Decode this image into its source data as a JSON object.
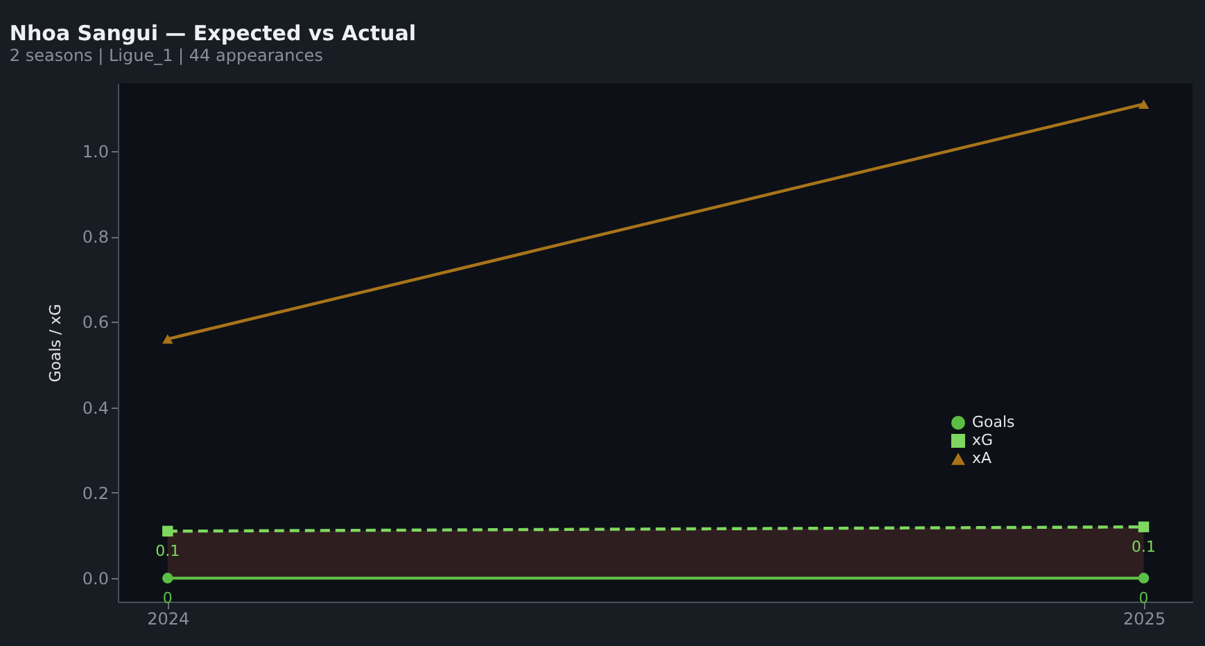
{
  "chart_data": {
    "type": "line",
    "title": "Nhoa Sangui — Expected vs Actual",
    "subtitle": "2 seasons | Ligue_1 | 44 appearances",
    "ylabel": "Goals / xG",
    "x": [
      2024,
      2025
    ],
    "xlim": [
      2023.949,
      2025.05
    ],
    "xticks": [
      2024,
      2025
    ],
    "ylim": [
      -0.055,
      1.159
    ],
    "yticks": [
      {
        "value": 0,
        "label": "0.0"
      },
      0.2,
      0.4,
      0.6,
      0.8,
      {
        "value": 1,
        "label": "1.0"
      }
    ],
    "series": [
      {
        "name": "Goals",
        "color": "#5cbf45",
        "values": [
          0,
          0
        ],
        "marker": "circle",
        "line_style": "solid",
        "value_labels": [
          "0",
          "0"
        ]
      },
      {
        "name": "xG",
        "color": "#7ed860",
        "values": [
          0.11,
          0.12
        ],
        "marker": "square",
        "line_style": "dashed",
        "value_labels": [
          "0.1",
          "0.1"
        ],
        "lower": [
          0,
          0
        ],
        "upper": [
          0.11,
          0.12
        ]
      },
      {
        "name": "xA",
        "color": "#a8741a",
        "values": [
          0.56,
          1.11
        ],
        "marker": "triangle",
        "line_style": "solid"
      }
    ],
    "grid": false,
    "legend": "bottom right"
  }
}
